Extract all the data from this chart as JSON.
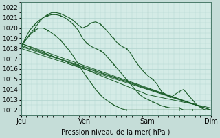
{
  "xlabel": "Pression niveau de la mer( hPa )",
  "bg_color": "#d4ebe6",
  "grid_color": "#b0d4ce",
  "line_color": "#1a5c28",
  "ylim": [
    1011.5,
    1022.5
  ],
  "day_labels": [
    "Jeu",
    "Ven",
    "Sam",
    "Dim"
  ],
  "day_positions": [
    0,
    72,
    144,
    216
  ],
  "total_hours": 216,
  "yticks": [
    1012,
    1013,
    1014,
    1015,
    1016,
    1017,
    1018,
    1019,
    1020,
    1021,
    1022
  ],
  "fig_bg": "#c5ddd8",
  "label_fontsize": 7,
  "tick_fontsize": 6.5,
  "lines_with_markers": [
    {
      "x": [
        0,
        5,
        10,
        15,
        20,
        25,
        30,
        35,
        40,
        45,
        50,
        55,
        60,
        65,
        70,
        75,
        80,
        85,
        90,
        95,
        100,
        105,
        110,
        115,
        120,
        125,
        130,
        135,
        140,
        145,
        150,
        155,
        160,
        165,
        170,
        175,
        180,
        185,
        190,
        195,
        200,
        205,
        210,
        215
      ],
      "y": [
        1018.2,
        1018.8,
        1019.4,
        1019.9,
        1020.5,
        1021.0,
        1021.3,
        1021.5,
        1021.5,
        1021.4,
        1021.2,
        1021.0,
        1020.7,
        1020.3,
        1020.0,
        1020.2,
        1020.5,
        1020.6,
        1020.4,
        1020.0,
        1019.5,
        1019.0,
        1018.5,
        1018.2,
        1018.0,
        1017.5,
        1016.8,
        1016.2,
        1015.7,
        1015.3,
        1015.0,
        1014.5,
        1013.8,
        1013.5,
        1013.2,
        1013.5,
        1013.8,
        1014.0,
        1013.5,
        1013.0,
        1012.5,
        1012.2,
        1012.0,
        1012.0
      ]
    },
    {
      "x": [
        0,
        5,
        10,
        15,
        20,
        25,
        30,
        35,
        40,
        45,
        50,
        55,
        60,
        65,
        70,
        75,
        80,
        85,
        90,
        95,
        100,
        105,
        110,
        115,
        120,
        125,
        130,
        135,
        140,
        145,
        150,
        155,
        160,
        165,
        170,
        175,
        180,
        185,
        190,
        195,
        200,
        205,
        210,
        215
      ],
      "y": [
        1018.2,
        1019.0,
        1019.8,
        1020.3,
        1020.7,
        1021.0,
        1021.2,
        1021.3,
        1021.3,
        1021.2,
        1021.0,
        1020.7,
        1020.3,
        1019.8,
        1019.0,
        1018.5,
        1018.2,
        1018.0,
        1017.8,
        1017.5,
        1017.0,
        1016.5,
        1016.0,
        1015.5,
        1015.0,
        1014.5,
        1014.0,
        1013.5,
        1013.2,
        1013.0,
        1012.8,
        1012.6,
        1012.4,
        1012.3,
        1012.2,
        1012.2,
        1012.2,
        1012.0,
        1012.0,
        1012.0,
        1012.0,
        1012.0,
        1012.0,
        1012.0
      ]
    },
    {
      "x": [
        0,
        5,
        10,
        15,
        20,
        25,
        30,
        35,
        40,
        45,
        50,
        55,
        60,
        65,
        70,
        75,
        80,
        85,
        90,
        95,
        100,
        105,
        110,
        115,
        120,
        125,
        130,
        135,
        140,
        145,
        150,
        155,
        160,
        165,
        170,
        175,
        180,
        185,
        190,
        195,
        200,
        205,
        210,
        215
      ],
      "y": [
        1018.2,
        1018.8,
        1019.3,
        1019.7,
        1020.0,
        1020.0,
        1019.8,
        1019.5,
        1019.2,
        1018.8,
        1018.3,
        1017.8,
        1017.2,
        1016.5,
        1015.8,
        1015.2,
        1014.6,
        1014.0,
        1013.5,
        1013.1,
        1012.8,
        1012.5,
        1012.3,
        1012.1,
        1012.0,
        1012.0,
        1012.0,
        1012.0,
        1012.0,
        1012.0,
        1012.0,
        1012.0,
        1012.0,
        1012.0,
        1012.0,
        1012.0,
        1012.0,
        1012.0,
        1012.0,
        1012.0,
        1012.0,
        1012.0,
        1012.0,
        1012.0
      ]
    }
  ],
  "lines_straight": [
    {
      "x": [
        0,
        216
      ],
      "y": [
        1018.5,
        1012.0
      ]
    },
    {
      "x": [
        0,
        216
      ],
      "y": [
        1018.3,
        1012.0
      ]
    },
    {
      "x": [
        0,
        216
      ],
      "y": [
        1018.2,
        1012.0
      ]
    },
    {
      "x": [
        0,
        216
      ],
      "y": [
        1018.0,
        1012.0
      ]
    },
    {
      "x": [
        0,
        144,
        216
      ],
      "y": [
        1018.5,
        1013.5,
        1012.2
      ]
    }
  ]
}
